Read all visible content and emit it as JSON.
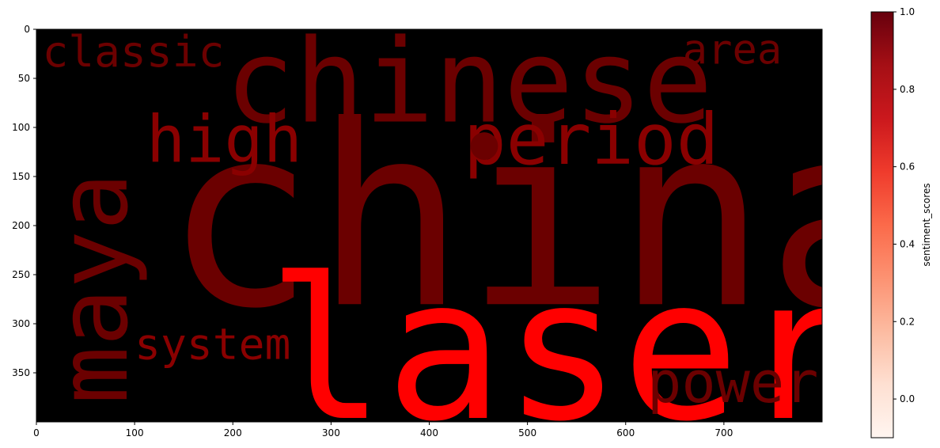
{
  "chart_data": {
    "type": "wordcloud",
    "image": {
      "xlim": [
        0,
        800
      ],
      "ylim": [
        400,
        0
      ],
      "background": "#000000"
    },
    "x_ticks": [
      0,
      100,
      200,
      300,
      400,
      500,
      600,
      700
    ],
    "y_ticks": [
      0,
      50,
      100,
      150,
      200,
      250,
      300,
      350
    ],
    "words": [
      {
        "text": "china",
        "x": 130,
        "y": 280,
        "size": 255,
        "rotate": 0,
        "color": "#6b0000"
      },
      {
        "text": "laser",
        "x": 235,
        "y": 396,
        "size": 200,
        "rotate": 0,
        "color": "#ff0000"
      },
      {
        "text": "chinese",
        "x": 192,
        "y": 94,
        "size": 118,
        "rotate": 0,
        "color": "#6b0000"
      },
      {
        "text": "maya",
        "x": 92,
        "y": 382,
        "size": 98,
        "rotate": -90,
        "color": "#6b0000"
      },
      {
        "text": "period",
        "x": 435,
        "y": 137,
        "size": 72,
        "rotate": 0,
        "color": "#8a0000"
      },
      {
        "text": "high",
        "x": 112,
        "y": 135,
        "size": 66,
        "rotate": 0,
        "color": "#8a0000"
      },
      {
        "text": "power",
        "x": 622,
        "y": 380,
        "size": 58,
        "rotate": 0,
        "color": "#6b0000"
      },
      {
        "text": "classic",
        "x": 6,
        "y": 38,
        "size": 44,
        "rotate": 0,
        "color": "#6b0000"
      },
      {
        "text": "area",
        "x": 658,
        "y": 35,
        "size": 42,
        "rotate": 0,
        "color": "#6b0000"
      },
      {
        "text": "system",
        "x": 100,
        "y": 336,
        "size": 44,
        "rotate": 0,
        "color": "#8a0000"
      }
    ],
    "dot": {
      "x": 456,
      "y": 119,
      "r": 14,
      "color": "#6b0000"
    },
    "colorbar": {
      "label": "sentiment_scores",
      "range": [
        -0.1,
        1.0
      ],
      "ticks": [
        "0.0",
        "0.2",
        "0.4",
        "0.6",
        "0.8",
        "1.0"
      ],
      "tick_values": [
        0.0,
        0.2,
        0.4,
        0.6,
        0.8,
        1.0
      ],
      "colormap": "Reds",
      "stops": [
        "#fff5f0",
        "#fee0d2",
        "#fcbba1",
        "#fc9272",
        "#fb6a4a",
        "#ef3b2c",
        "#cb181d",
        "#a50f15",
        "#67000d"
      ]
    }
  }
}
